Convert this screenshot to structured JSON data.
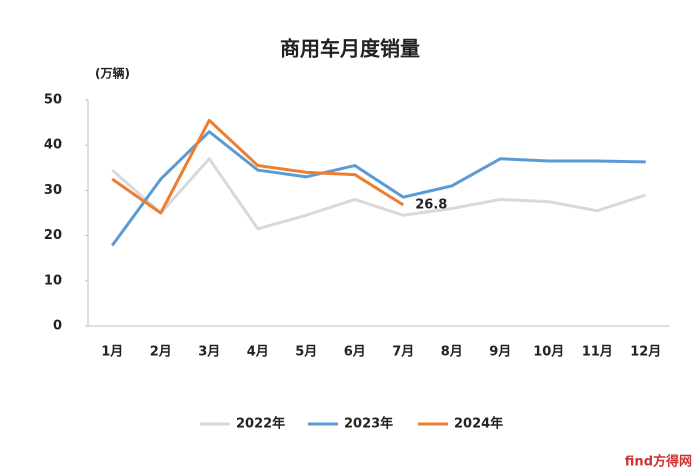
{
  "chart_data": {
    "type": "line",
    "title": "商用车月度销量",
    "y_unit": "(万辆)",
    "categories": [
      "1月",
      "2月",
      "3月",
      "4月",
      "5月",
      "6月",
      "7月",
      "8月",
      "9月",
      "10月",
      "11月",
      "12月"
    ],
    "series": [
      {
        "name": "2022年",
        "color": "#d9d9d9",
        "values": [
          34.5,
          25,
          37,
          21.5,
          24.5,
          28,
          24.5,
          26,
          28,
          27.5,
          25.5,
          29
        ]
      },
      {
        "name": "2023年",
        "color": "#5b9bd5",
        "values": [
          17.8,
          32.5,
          43,
          34.5,
          33,
          35.5,
          28.5,
          31,
          37,
          36.5,
          36.5,
          36.3
        ]
      },
      {
        "name": "2024年",
        "color": "#ed7d31",
        "values": [
          32.5,
          25,
          45.5,
          35.5,
          34,
          33.5,
          26.8,
          null,
          null,
          null,
          null,
          null
        ],
        "value_labels": [
          null,
          null,
          null,
          null,
          null,
          null,
          "26.8",
          null,
          null,
          null,
          null,
          null
        ]
      }
    ],
    "ylim": [
      0,
      50
    ],
    "yticks": [
      0,
      10,
      20,
      30,
      40,
      50
    ],
    "grid": false,
    "legend": "bottom",
    "watermark": "find方得网"
  }
}
